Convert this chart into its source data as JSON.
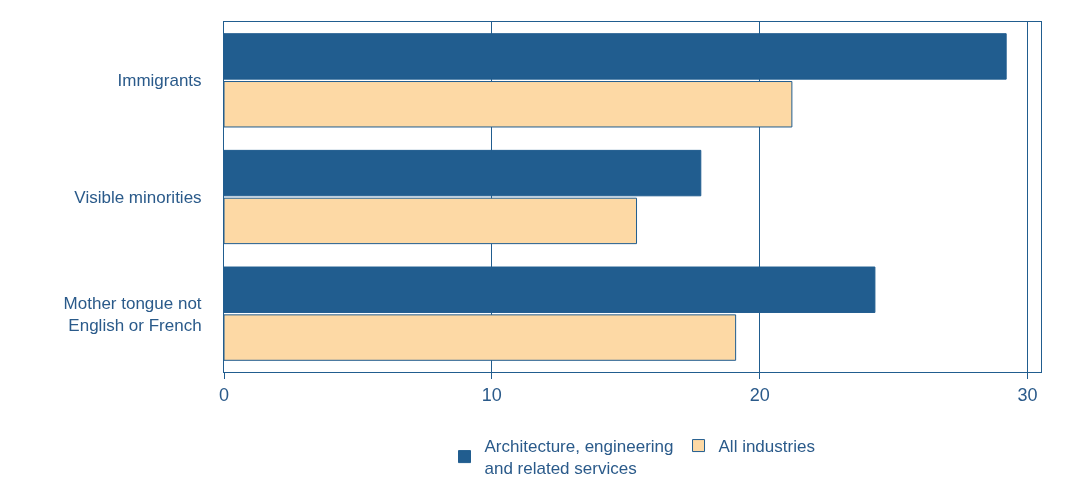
{
  "chart_data": {
    "type": "bar",
    "orientation": "horizontal",
    "categories": [
      "Immigrants",
      "Visible minorities",
      "Mother tongue not\nEnglish or French"
    ],
    "series": [
      {
        "name": "Architecture, engineering\nand related services",
        "color": "#215d8f",
        "values": [
          29.2,
          17.8,
          24.3
        ]
      },
      {
        "name": "All industries",
        "color": "#fdd9a5",
        "values": [
          21.2,
          15.4,
          19.1
        ]
      }
    ],
    "xlim": [
      0,
      30.5
    ],
    "xticks": [
      0,
      10,
      20,
      30
    ],
    "grid": "x",
    "legend": "bottom"
  }
}
